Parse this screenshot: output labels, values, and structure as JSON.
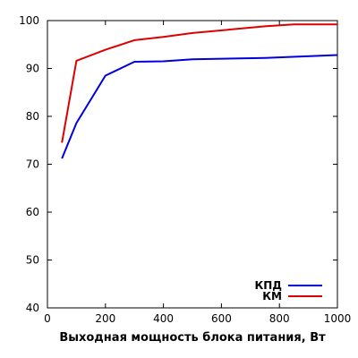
{
  "chart_data": {
    "type": "line",
    "title": "",
    "xlabel": "Выходная мощность блока питания, Вт",
    "ylabel": "",
    "xlim": [
      0,
      1000
    ],
    "ylim": [
      40,
      100
    ],
    "xticks": [
      0,
      200,
      400,
      600,
      800,
      1000
    ],
    "yticks": [
      40,
      50,
      60,
      70,
      80,
      90,
      100
    ],
    "grid": false,
    "legend_position": "bottom-right",
    "series": [
      {
        "name": "КПД",
        "color": "#0000dd",
        "x": [
          50,
          100,
          200,
          300,
          400,
          500,
          750,
          1000
        ],
        "y": [
          71.2,
          78.6,
          88.5,
          91.4,
          91.5,
          91.9,
          92.2,
          92.8
        ]
      },
      {
        "name": "КМ",
        "color": "#dd0000",
        "x": [
          50,
          100,
          200,
          300,
          400,
          500,
          750,
          850,
          1000
        ],
        "y": [
          74.5,
          91.6,
          93.9,
          95.9,
          96.6,
          97.4,
          98.8,
          99.2,
          99.2
        ]
      }
    ]
  }
}
